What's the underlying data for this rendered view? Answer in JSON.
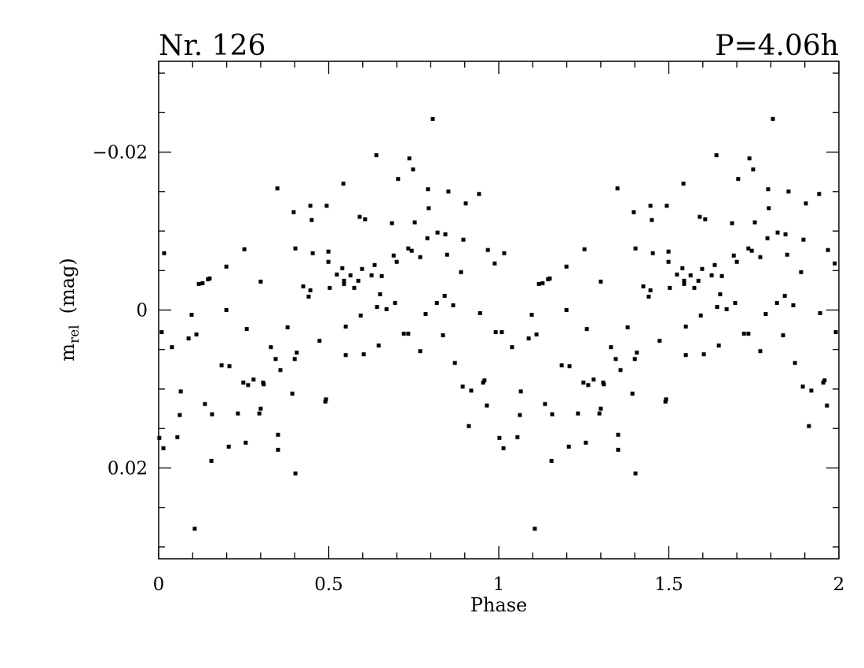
{
  "chart_data": {
    "type": "scatter",
    "title": "Nr. 126",
    "subtitle": "P=4.06h",
    "xlabel": "Phase",
    "ylabel": {
      "main": "m",
      "sub": "rel",
      "unit": "(mag)"
    },
    "xlim": [
      0,
      2
    ],
    "ylim": [
      0.0315,
      -0.0315
    ],
    "xticks": [
      0,
      0.5,
      1,
      1.5,
      2
    ],
    "xminorticks": [
      0.1,
      0.2,
      0.3,
      0.4,
      0.6,
      0.7,
      0.8,
      0.9,
      1.1,
      1.2,
      1.3,
      1.4,
      1.6,
      1.7,
      1.8,
      1.9
    ],
    "yticks": [
      {
        "value": -0.02,
        "label": "−0.02"
      },
      0,
      0.02
    ],
    "yminorticks": [
      -0.03,
      -0.025,
      -0.015,
      -0.01,
      -0.005,
      0.005,
      0.01,
      0.015,
      0.025,
      0.03
    ],
    "color": "#000000",
    "x": [
      0.002,
      0.009,
      0.014,
      0.016,
      0.039,
      0.055,
      0.062,
      0.065,
      0.088,
      0.097,
      0.106,
      0.111,
      0.118,
      0.129,
      0.136,
      0.145,
      0.15,
      0.157,
      0.155,
      0.185,
      0.199,
      0.199,
      0.206,
      0.208,
      0.233,
      0.249,
      0.252,
      0.256,
      0.259,
      0.263,
      0.279,
      0.296,
      0.3,
      0.3,
      0.307,
      0.309,
      0.33,
      0.344,
      0.349,
      0.351,
      0.351,
      0.358,
      0.379,
      0.393,
      0.397,
      0.4,
      0.402,
      0.402,
      0.406,
      0.425,
      0.441,
      0.446,
      0.446,
      0.45,
      0.453,
      0.473,
      0.49,
      0.492,
      0.494,
      0.499,
      0.499,
      0.503,
      0.524,
      0.54,
      0.543,
      0.545,
      0.545,
      0.55,
      0.55,
      0.564,
      0.575,
      0.587,
      0.591,
      0.594,
      0.598,
      0.603,
      0.607,
      0.626,
      0.635,
      0.64,
      0.642,
      0.647,
      0.651,
      0.656,
      0.67,
      0.686,
      0.691,
      0.695,
      0.7,
      0.704,
      0.721,
      0.734,
      0.734,
      0.737,
      0.744,
      0.748,
      0.753,
      0.769,
      0.769,
      0.785,
      0.79,
      0.792,
      0.794,
      0.806,
      0.818,
      0.82,
      0.836,
      0.841,
      0.843,
      0.848,
      0.852,
      0.866,
      0.871,
      0.889,
      0.894,
      0.896,
      0.903,
      0.912,
      0.919,
      0.942,
      0.945,
      0.954,
      0.958,
      0.965,
      0.968,
      0.988,
      0.991,
      1.002,
      1.009,
      1.014,
      1.016,
      1.039,
      1.055,
      1.062,
      1.065,
      1.088,
      1.097,
      1.106,
      1.111,
      1.118,
      1.129,
      1.136,
      1.145,
      1.15,
      1.157,
      1.155,
      1.185,
      1.199,
      1.199,
      1.206,
      1.208,
      1.233,
      1.249,
      1.252,
      1.256,
      1.259,
      1.263,
      1.279,
      1.296,
      1.3,
      1.3,
      1.307,
      1.309,
      1.33,
      1.344,
      1.349,
      1.351,
      1.351,
      1.358,
      1.379,
      1.393,
      1.397,
      1.4,
      1.402,
      1.402,
      1.406,
      1.425,
      1.441,
      1.446,
      1.446,
      1.45,
      1.453,
      1.473,
      1.49,
      1.492,
      1.494,
      1.499,
      1.499,
      1.503,
      1.524,
      1.54,
      1.543,
      1.545,
      1.545,
      1.55,
      1.55,
      1.564,
      1.575,
      1.587,
      1.591,
      1.594,
      1.598,
      1.603,
      1.607,
      1.626,
      1.635,
      1.64,
      1.642,
      1.647,
      1.651,
      1.656,
      1.67,
      1.686,
      1.691,
      1.695,
      1.7,
      1.704,
      1.721,
      1.734,
      1.734,
      1.737,
      1.744,
      1.748,
      1.753,
      1.769,
      1.769,
      1.785,
      1.79,
      1.792,
      1.794,
      1.806,
      1.818,
      1.82,
      1.836,
      1.841,
      1.843,
      1.848,
      1.852,
      1.866,
      1.871,
      1.889,
      1.894,
      1.896,
      1.903,
      1.912,
      1.919,
      1.942,
      1.945,
      1.954,
      1.958,
      1.965,
      1.968,
      1.988,
      1.991
    ],
    "values": [
      0.0162,
      0.0028,
      0.0175,
      -0.0072,
      0.0047,
      0.0161,
      0.0133,
      0.0103,
      0.0036,
      0.0006,
      0.0277,
      0.0031,
      -0.0033,
      -0.0034,
      0.0119,
      -0.0039,
      -0.004,
      0.0132,
      0.0191,
      0.007,
      -0.0055,
      0,
      0.0173,
      0.0071,
      0.0131,
      0.0092,
      -0.0077,
      0.0168,
      0.0024,
      0.0095,
      0.0088,
      0.0131,
      0.0125,
      -0.0036,
      0.0092,
      0.0094,
      0.0047,
      0.0062,
      -0.0154,
      0.0158,
      0.0177,
      0.0076,
      0.0022,
      0.0106,
      -0.0124,
      0.0062,
      -0.0078,
      0.0207,
      0.0054,
      -0.003,
      -0.0017,
      -0.0025,
      -0.0132,
      -0.0114,
      -0.0072,
      0.0039,
      0.0116,
      0.0113,
      -0.0132,
      -0.0074,
      -0.0061,
      -0.0028,
      -0.0045,
      -0.0053,
      -0.016,
      -0.0037,
      -0.0033,
      0.0021,
      0.0057,
      -0.0044,
      -0.0028,
      -0.0037,
      -0.0118,
      0.0007,
      -0.0052,
      0.0056,
      -0.0115,
      -0.0044,
      -0.0057,
      -0.0196,
      -0.0004,
      0.0045,
      -0.002,
      -0.0043,
      -0.0001,
      -0.011,
      -0.0069,
      -0.0009,
      -0.0061,
      -0.0166,
      0.003,
      -0.0078,
      0.003,
      -0.0192,
      -0.0075,
      -0.0178,
      -0.0111,
      -0.0067,
      0.0052,
      0.0005,
      -0.0091,
      -0.0153,
      -0.0129,
      -0.0242,
      -0.0009,
      -0.0098,
      0.0032,
      -0.0018,
      -0.0096,
      -0.007,
      -0.015,
      -0.0006,
      0.0067,
      -0.0048,
      0.0097,
      -0.0089,
      -0.0135,
      0.0147,
      0.0102,
      -0.0147,
      0.0004,
      0.0092,
      0.0089,
      0.0121,
      -0.0076,
      -0.0059,
      0.0028,
      0.0162,
      0.0028,
      0.0175,
      -0.0072,
      0.0047,
      0.0161,
      0.0133,
      0.0103,
      0.0036,
      0.0006,
      0.0277,
      0.0031,
      -0.0033,
      -0.0034,
      0.0119,
      -0.0039,
      -0.004,
      0.0132,
      0.0191,
      0.007,
      -0.0055,
      0,
      0.0173,
      0.0071,
      0.0131,
      0.0092,
      -0.0077,
      0.0168,
      0.0024,
      0.0095,
      0.0088,
      0.0131,
      0.0125,
      -0.0036,
      0.0092,
      0.0094,
      0.0047,
      0.0062,
      -0.0154,
      0.0158,
      0.0177,
      0.0076,
      0.0022,
      0.0106,
      -0.0124,
      0.0062,
      -0.0078,
      0.0207,
      0.0054,
      -0.003,
      -0.0017,
      -0.0025,
      -0.0132,
      -0.0114,
      -0.0072,
      0.0039,
      0.0116,
      0.0113,
      -0.0132,
      -0.0074,
      -0.0061,
      -0.0028,
      -0.0045,
      -0.0053,
      -0.016,
      -0.0037,
      -0.0033,
      0.0021,
      0.0057,
      -0.0044,
      -0.0028,
      -0.0037,
      -0.0118,
      0.0007,
      -0.0052,
      0.0056,
      -0.0115,
      -0.0044,
      -0.0057,
      -0.0196,
      -0.0004,
      0.0045,
      -0.002,
      -0.0043,
      -0.0001,
      -0.011,
      -0.0069,
      -0.0009,
      -0.0061,
      -0.0166,
      0.003,
      -0.0078,
      0.003,
      -0.0192,
      -0.0075,
      -0.0178,
      -0.0111,
      -0.0067,
      0.0052,
      0.0005,
      -0.0091,
      -0.0153,
      -0.0129,
      -0.0242,
      -0.0009,
      -0.0098,
      0.0032,
      -0.0018,
      -0.0096,
      -0.007,
      -0.015,
      -0.0006,
      0.0067,
      -0.0048,
      0.0097,
      -0.0089,
      -0.0135,
      0.0147,
      0.0102,
      -0.0147,
      0.0004,
      0.0092,
      0.0089,
      0.0121,
      -0.0076,
      -0.0059,
      0.0028
    ]
  }
}
